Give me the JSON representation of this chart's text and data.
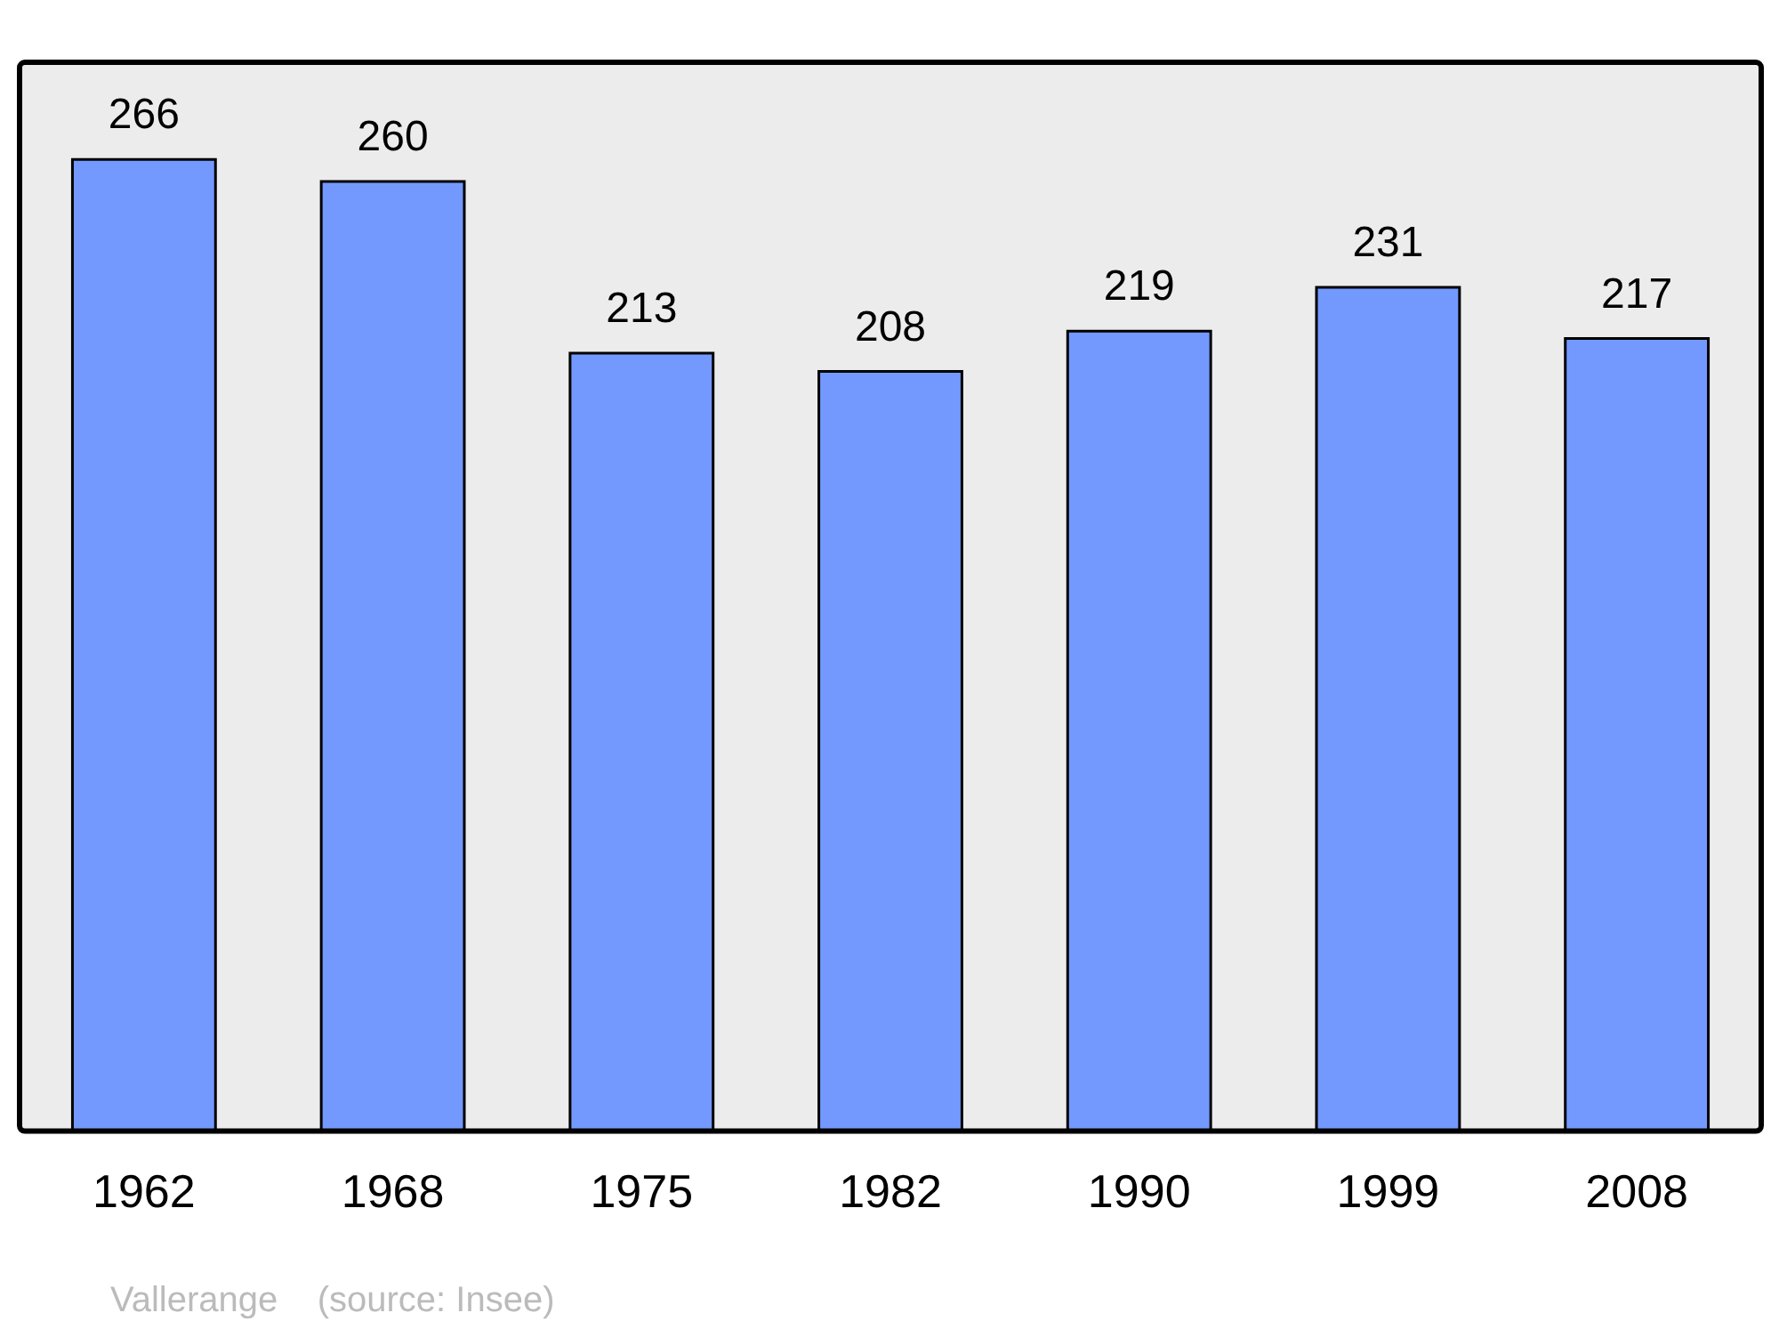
{
  "chart_data": {
    "type": "bar",
    "categories": [
      "1962",
      "1968",
      "1975",
      "1982",
      "1990",
      "1999",
      "2008"
    ],
    "values": [
      266,
      260,
      213,
      208,
      219,
      231,
      217
    ],
    "color": "#7399ff",
    "data_labels": true,
    "grid": false,
    "legend": false,
    "annotations": [
      "Vallerange    (source: Insee)"
    ]
  }
}
